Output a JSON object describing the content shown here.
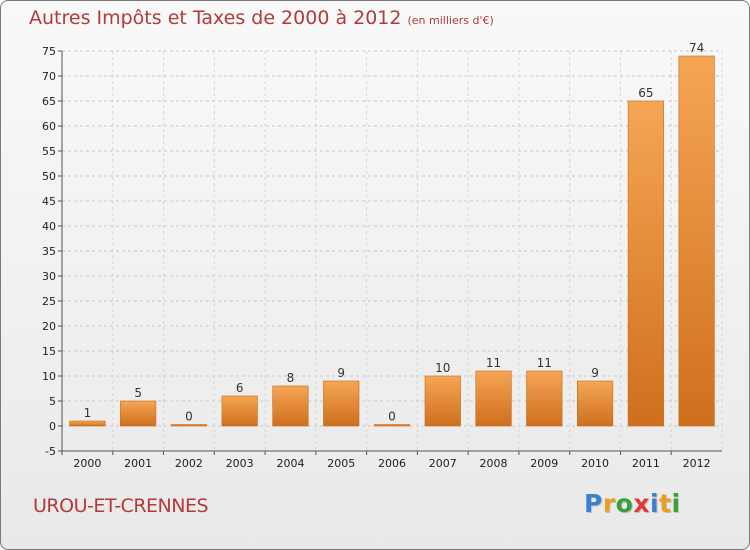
{
  "chart_data": {
    "type": "bar",
    "title": "Autres Impôts et Taxes de 2000 à 2012",
    "subtitle": "(en milliers d'€)",
    "categories": [
      "2000",
      "2001",
      "2002",
      "2003",
      "2004",
      "2005",
      "2006",
      "2007",
      "2008",
      "2009",
      "2010",
      "2011",
      "2012"
    ],
    "values": [
      1,
      5,
      0,
      6,
      8,
      9,
      0,
      10,
      11,
      11,
      9,
      65,
      74
    ],
    "value_labels": [
      "1",
      "5",
      "0",
      "6",
      "8",
      "9",
      "0",
      "10",
      "11",
      "11",
      "9",
      "65",
      "74"
    ],
    "ylim": [
      -5,
      75
    ],
    "yticks": [
      -5,
      0,
      5,
      10,
      15,
      20,
      25,
      30,
      35,
      40,
      45,
      50,
      55,
      60,
      65,
      70,
      75
    ],
    "xlabel": "",
    "ylabel": "",
    "grid": "horizontal-dashed",
    "legend": "none",
    "colors": {
      "bar": "#f0a050",
      "bar_dark": "#cc6e1c",
      "title": "#b23a3a"
    }
  },
  "location": "UROU-ET-CRENNES",
  "logo": {
    "letters": [
      "P",
      "r",
      "o",
      "x",
      "i",
      "t",
      "i"
    ],
    "colors": [
      "#3a7fd0",
      "#e8a020",
      "#3aa03a",
      "#e03a3a",
      "#3a7fd0",
      "#e8a020",
      "#3aa03a"
    ]
  }
}
